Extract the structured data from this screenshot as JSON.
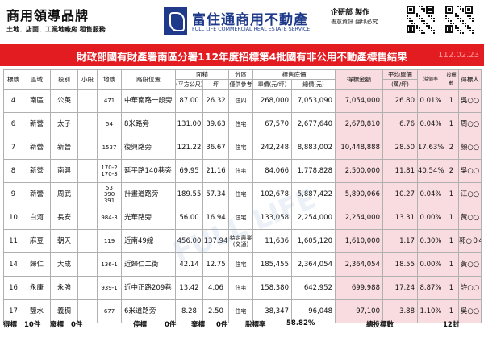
{
  "brand": {
    "title": "商用領導品牌",
    "subtitle": "土地．店面．工業地廠房 租售服務",
    "company_cn": "富住通商用不動產",
    "company_en": "FULL LIFE COMMERCIAL REAL ESTATE SERVICE",
    "producer": "企研部 製作",
    "producer_note": "善意資訊 翻印必究"
  },
  "title": {
    "text": "財政部國有財產署南區分署112年度招標第4批國有非公用不動產標售結果",
    "date": "112.02.23"
  },
  "headers": {
    "lot": "標號",
    "district": "區域",
    "section": "段別",
    "subsection": "小段",
    "lot_number": "地號",
    "road": "路段位置",
    "area": "面積",
    "area_sqm": "(平方公尺)",
    "area_ping": "坪",
    "zoning": "分區",
    "zoning_sub": "僅供參考",
    "reserve": "標售底價",
    "unit_price": "單價(元/坪)",
    "total_price": "總價(元)",
    "winning": "得標金額",
    "avg_unit": "平均單價",
    "avg_unit_sub": "(萬/坪)",
    "premium": "溢價率",
    "bidders": "投標數",
    "winner": "得標人"
  },
  "rows": [
    {
      "lot": "4",
      "district": "南區",
      "section": "公英",
      "subsection": "",
      "lot_number": "471",
      "road": "中華南路一段旁",
      "sqm": "87.00",
      "ping": "26.32",
      "zoning": "住四",
      "unit": "268,000",
      "total": "7,053,090",
      "winning": "7,054,000",
      "avg": "26.80",
      "premium": "0.01%",
      "bidders": "1",
      "winner": "吳○○"
    },
    {
      "lot": "6",
      "district": "新營",
      "section": "太子",
      "subsection": "",
      "lot_number": "54",
      "road": "8米路旁",
      "sqm": "131.00",
      "ping": "39.63",
      "zoning": "住宅",
      "unit": "67,570",
      "total": "2,677,640",
      "winning": "2,678,810",
      "avg": "6.76",
      "premium": "0.04%",
      "bidders": "1",
      "winner": "周○○"
    },
    {
      "lot": "7",
      "district": "新營",
      "section": "新營",
      "subsection": "",
      "lot_number": "1537",
      "road": "復興路旁",
      "sqm": "121.22",
      "ping": "36.67",
      "zoning": "住宅",
      "unit": "242,248",
      "total": "8,883,002",
      "winning": "10,448,888",
      "avg": "28.50",
      "premium": "17.63%",
      "bidders": "2",
      "winner": "顏○○"
    },
    {
      "lot": "8",
      "district": "新營",
      "section": "南興",
      "subsection": "",
      "lot_number": "170-2\n170-3",
      "road": "延平路140巷旁",
      "sqm": "69.95",
      "ping": "21.16",
      "zoning": "住宅",
      "unit": "84,066",
      "total": "1,778,828",
      "winning": "2,500,000",
      "avg": "11.81",
      "premium": "40.54%",
      "bidders": "2",
      "winner": "吳○○"
    },
    {
      "lot": "9",
      "district": "新營",
      "section": "周武",
      "subsection": "",
      "lot_number": "53\n390\n391",
      "road": "計畫道路旁",
      "sqm": "189.55",
      "ping": "57.34",
      "zoning": "住宅",
      "unit": "102,678",
      "total": "5,887,422",
      "winning": "5,890,066",
      "avg": "10.27",
      "premium": "0.04%",
      "bidders": "1",
      "winner": "江○○"
    },
    {
      "lot": "10",
      "district": "白河",
      "section": "長安",
      "subsection": "",
      "lot_number": "984-3",
      "road": "光華路旁",
      "sqm": "56.00",
      "ping": "16.94",
      "zoning": "住宅",
      "unit": "133,058",
      "total": "2,254,000",
      "winning": "2,254,000",
      "avg": "13.31",
      "premium": "0.00%",
      "bidders": "1",
      "winner": "黃○○"
    },
    {
      "lot": "11",
      "district": "麻豆",
      "section": "朝天",
      "subsection": "",
      "lot_number": "119",
      "road": "近南49線",
      "sqm": "456.00",
      "ping": "137.94",
      "zoning": "特定農業\n(交通)",
      "unit": "11,636",
      "total": "1,605,120",
      "winning": "1,610,000",
      "avg": "1.17",
      "premium": "0.30%",
      "bidders": "1",
      "winner": "郭○０4人"
    },
    {
      "lot": "14",
      "district": "歸仁",
      "section": "大成",
      "subsection": "",
      "lot_number": "136-1",
      "road": "近歸仁二街",
      "sqm": "42.14",
      "ping": "12.75",
      "zoning": "住宅",
      "unit": "185,455",
      "total": "2,364,054",
      "winning": "2,364,054",
      "avg": "18.55",
      "premium": "0.00%",
      "bidders": "1",
      "winner": "黃○○"
    },
    {
      "lot": "16",
      "district": "永康",
      "section": "永強",
      "subsection": "",
      "lot_number": "939-1",
      "road": "近中正路209巷",
      "sqm": "13.42",
      "ping": "4.06",
      "zoning": "住宅",
      "unit": "158,380",
      "total": "642,952",
      "winning": "699,988",
      "avg": "17.24",
      "premium": "8.87%",
      "bidders": "1",
      "winner": "許○○"
    },
    {
      "lot": "17",
      "district": "鹽水",
      "section": "義稠",
      "subsection": "",
      "lot_number": "677",
      "road": "6米道路旁",
      "sqm": "8.28",
      "ping": "2.50",
      "zoning": "住宅",
      "unit": "38,347",
      "total": "96,048",
      "winning": "97,100",
      "avg": "3.88",
      "premium": "1.10%",
      "bidders": "1",
      "winner": "吳○○"
    }
  ],
  "summary": {
    "won_label": "得標",
    "won_value": "10件",
    "void_label": "廢標",
    "void_value": "0件",
    "stopped_label": "停標",
    "stopped_value": "0件",
    "abandoned_label": "棄標",
    "abandoned_value": "0件",
    "fail_label": "脫標率",
    "fail_value": "58.82%",
    "bids_label": "總投標數",
    "bids_value": "12封"
  },
  "colors": {
    "title_bar": "#e31c22",
    "result_fill": "#f9dce0",
    "brand_blue": "#1f3a8a"
  }
}
